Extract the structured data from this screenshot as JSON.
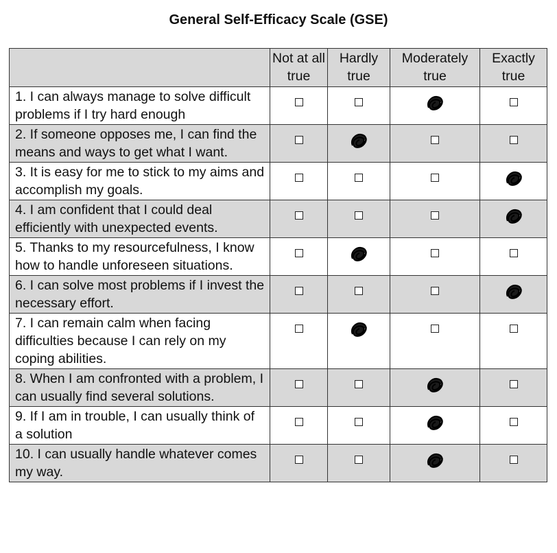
{
  "title": "General Self-Efficacy Scale (GSE)",
  "table": {
    "columns": [
      "Not at all true",
      "Hardly true",
      "Moderately true",
      "Exactly true"
    ],
    "rows": [
      {
        "text": "1. I can always manage to solve difficult problems if I try hard enough",
        "selected": 2
      },
      {
        "text": "2. If someone opposes me, I can find the means and ways to get what I want.",
        "selected": 1
      },
      {
        "text": "3. It is easy for me to stick to my aims and accomplish my goals.",
        "selected": 3
      },
      {
        "text": "4. I am confident that I could deal efficiently with unexpected events.",
        "selected": 3
      },
      {
        "text": "5. Thanks to my resourcefulness, I know how to handle unforeseen situations.",
        "selected": 1
      },
      {
        "text": "6. I can solve most problems if I invest the necessary effort.",
        "selected": 3
      },
      {
        "text": "7. I can remain calm when facing difficulties because I can rely on my coping abilities.",
        "selected": 1
      },
      {
        "text": "8. When I am confronted with a problem, I can usually find several solutions.",
        "selected": 2
      },
      {
        "text": "9. If I am in trouble, I can usually think of a solution",
        "selected": 2
      },
      {
        "text": "10. I can usually handle whatever comes my way.",
        "selected": 2
      }
    ]
  }
}
